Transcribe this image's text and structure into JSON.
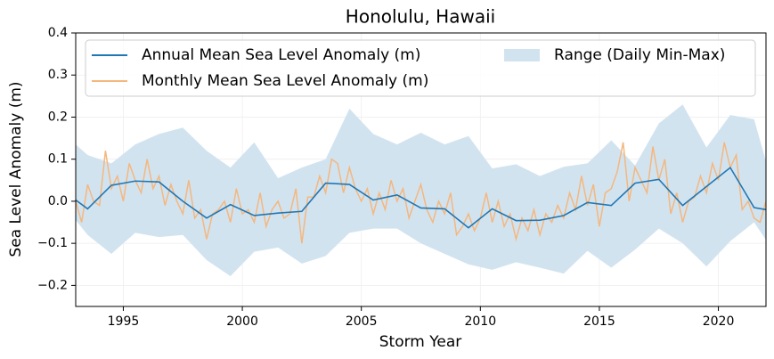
{
  "chart_data": {
    "type": "line",
    "title": "Honolulu, Hawaii",
    "xlabel": "Storm Year",
    "ylabel": "Sea Level Anomaly (m)",
    "xlim": [
      1993,
      2022
    ],
    "ylim": [
      -0.25,
      0.4
    ],
    "xticks": [
      1995,
      2000,
      2005,
      2010,
      2015,
      2020
    ],
    "yticks": [
      {
        "value": -0.2,
        "label": "−0.2"
      },
      {
        "value": -0.1,
        "label": "−0.1"
      },
      {
        "value": 0,
        "label": "0.0"
      },
      0.1,
      0.2,
      0.3,
      0.4
    ],
    "grid": true,
    "legend": "upper left",
    "series": [
      {
        "name": "Annual Mean Sea Level Anomaly (m)",
        "color": "#1f77b4",
        "x": [
          1993,
          1993.5,
          1994.5,
          1995.5,
          1996.5,
          1997.5,
          1998.5,
          1999.5,
          2000.5,
          2001.5,
          2002.5,
          2003.5,
          2004.5,
          2005.5,
          2006.5,
          2007.5,
          2008.5,
          2009.5,
          2010.5,
          2011.5,
          2012.5,
          2013.5,
          2014.5,
          2015.5,
          2016.5,
          2017.5,
          2018.5,
          2019.5,
          2020.5,
          2021.5,
          2022
        ],
        "values": [
          0.003,
          -0.018,
          0.038,
          0.048,
          0.046,
          0.0,
          -0.04,
          -0.008,
          -0.034,
          -0.028,
          -0.024,
          0.043,
          0.04,
          0.003,
          0.015,
          -0.016,
          -0.018,
          -0.063,
          -0.018,
          -0.046,
          -0.045,
          -0.034,
          -0.003,
          -0.01,
          0.043,
          0.052,
          -0.01,
          0.035,
          0.08,
          -0.015,
          -0.02
        ]
      },
      {
        "name": "Monthly Mean Sea Level Anomaly (m)",
        "color": "#f4b77e",
        "x": [
          1993,
          1993.25,
          1993.5,
          1993.75,
          1994,
          1994.25,
          1994.5,
          1994.75,
          1995,
          1995.25,
          1995.5,
          1995.75,
          1996,
          1996.25,
          1996.5,
          1996.75,
          1997,
          1997.25,
          1997.5,
          1997.75,
          1998,
          1998.25,
          1998.5,
          1998.75,
          1999,
          1999.25,
          1999.5,
          1999.75,
          2000,
          2000.25,
          2000.5,
          2000.75,
          2001,
          2001.25,
          2001.5,
          2001.75,
          2002,
          2002.25,
          2002.5,
          2002.75,
          2003,
          2003.25,
          2003.5,
          2003.75,
          2004,
          2004.25,
          2004.5,
          2004.75,
          2005,
          2005.25,
          2005.5,
          2005.75,
          2006,
          2006.25,
          2006.5,
          2006.75,
          2007,
          2007.25,
          2007.5,
          2007.75,
          2008,
          2008.25,
          2008.5,
          2008.75,
          2009,
          2009.25,
          2009.5,
          2009.75,
          2010,
          2010.25,
          2010.5,
          2010.75,
          2011,
          2011.25,
          2011.5,
          2011.75,
          2012,
          2012.25,
          2012.5,
          2012.75,
          2013,
          2013.25,
          2013.5,
          2013.75,
          2014,
          2014.25,
          2014.5,
          2014.75,
          2015,
          2015.25,
          2015.5,
          2015.75,
          2016,
          2016.25,
          2016.5,
          2016.75,
          2017,
          2017.25,
          2017.5,
          2017.75,
          2018,
          2018.25,
          2018.5,
          2018.75,
          2019,
          2019.25,
          2019.5,
          2019.75,
          2020,
          2020.25,
          2020.5,
          2020.75,
          2021,
          2021.25,
          2021.5,
          2021.75,
          2022
        ],
        "values": [
          0.0,
          -0.05,
          0.04,
          0.0,
          -0.01,
          0.12,
          0.03,
          0.06,
          0.0,
          0.09,
          0.05,
          0.02,
          0.1,
          0.03,
          0.06,
          -0.01,
          0.04,
          0.0,
          -0.03,
          0.05,
          -0.04,
          -0.02,
          -0.09,
          -0.03,
          -0.02,
          0.0,
          -0.05,
          0.03,
          -0.03,
          -0.02,
          -0.05,
          0.02,
          -0.06,
          -0.02,
          0.0,
          -0.04,
          -0.03,
          0.03,
          -0.1,
          0.01,
          0.01,
          0.06,
          0.02,
          0.1,
          0.09,
          0.02,
          0.08,
          0.03,
          0.0,
          0.03,
          -0.03,
          0.02,
          -0.02,
          0.05,
          0.0,
          0.03,
          -0.04,
          0.0,
          0.04,
          -0.02,
          -0.05,
          0.0,
          -0.03,
          0.02,
          -0.08,
          -0.06,
          -0.03,
          -0.07,
          -0.04,
          0.02,
          -0.05,
          0.0,
          -0.06,
          -0.03,
          -0.09,
          -0.04,
          -0.07,
          -0.02,
          -0.08,
          -0.03,
          -0.05,
          -0.01,
          -0.04,
          0.02,
          -0.02,
          0.06,
          -0.01,
          0.04,
          -0.06,
          0.02,
          0.03,
          0.07,
          0.14,
          0.0,
          0.08,
          0.05,
          0.02,
          0.13,
          0.05,
          0.1,
          -0.03,
          0.02,
          -0.05,
          0.0,
          0.01,
          0.06,
          0.02,
          0.09,
          0.05,
          0.14,
          0.08,
          0.11,
          -0.02,
          0.0,
          -0.04,
          -0.05,
          0.0
        ]
      },
      {
        "name": "Range (Daily Min-Max)",
        "color": "#d2e3f0",
        "x": [
          1993,
          1993.5,
          1994.5,
          1995.5,
          1996.5,
          1997.5,
          1998.5,
          1999.5,
          2000.5,
          2001.5,
          2002.5,
          2003.5,
          2004.5,
          2005.5,
          2006.5,
          2007.5,
          2008.5,
          2009.5,
          2010.5,
          2011.5,
          2012.5,
          2013.5,
          2014.5,
          2015.5,
          2016.5,
          2017.5,
          2018.5,
          2019.5,
          2020.5,
          2021.5,
          2022
        ],
        "upper": [
          0.135,
          0.11,
          0.09,
          0.135,
          0.16,
          0.175,
          0.12,
          0.08,
          0.14,
          0.055,
          0.08,
          0.1,
          0.22,
          0.16,
          0.135,
          0.163,
          0.135,
          0.155,
          0.078,
          0.088,
          0.06,
          0.082,
          0.09,
          0.145,
          0.085,
          0.185,
          0.23,
          0.128,
          0.205,
          0.195,
          0.095
        ],
        "lower": [
          -0.045,
          -0.08,
          -0.125,
          -0.075,
          -0.085,
          -0.08,
          -0.14,
          -0.178,
          -0.12,
          -0.11,
          -0.148,
          -0.13,
          -0.075,
          -0.065,
          -0.065,
          -0.1,
          -0.125,
          -0.15,
          -0.163,
          -0.145,
          -0.158,
          -0.172,
          -0.118,
          -0.158,
          -0.115,
          -0.065,
          -0.1,
          -0.155,
          -0.095,
          -0.05,
          -0.092
        ]
      }
    ]
  }
}
